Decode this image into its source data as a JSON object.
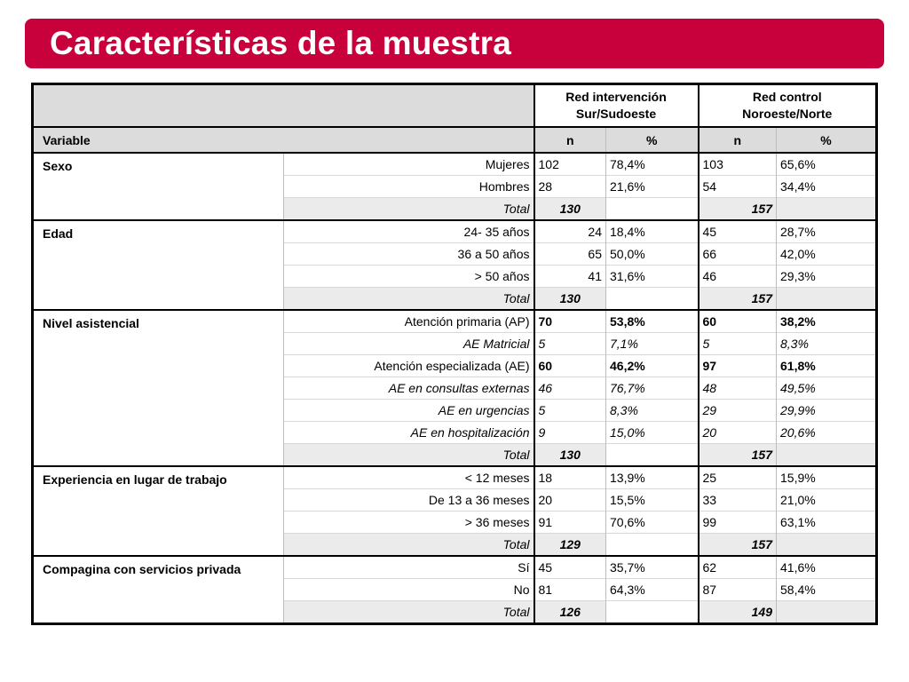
{
  "slide": {
    "title": "Características de la muestra"
  },
  "table": {
    "group_headers": {
      "intervencion": [
        "Red intervención",
        "Sur/Sudoeste"
      ],
      "control": [
        "Red control",
        "Noroeste/Norte"
      ]
    },
    "sub_headers": {
      "variable": "Variable",
      "n": "n",
      "pct": "%"
    },
    "sections": [
      {
        "name": "Sexo",
        "rows": [
          {
            "label": "Mujeres",
            "n1": "102",
            "p1": "78,4%",
            "n2": "103",
            "p2": "65,6%"
          },
          {
            "label": "Hombres",
            "n1": "28",
            "p1": "21,6%",
            "n2": "54",
            "p2": "34,4%"
          }
        ],
        "total": {
          "label": "Total",
          "n1": "130",
          "n2": "157"
        }
      },
      {
        "name": "Edad",
        "rows": [
          {
            "label": "24- 35 años",
            "n1": "24",
            "p1": "18,4%",
            "n2": "45",
            "p2": "28,7%"
          },
          {
            "label": "36 a 50 años",
            "n1": "65",
            "p1": "50,0%",
            "n2": "66",
            "p2": "42,0%"
          },
          {
            "label": "> 50 años",
            "n1": "41",
            "p1": "31,6%",
            "n2": "46",
            "p2": "29,3%"
          }
        ],
        "total": {
          "label": "Total",
          "n1": "130",
          "n2": "157"
        }
      },
      {
        "name": "Nivel asistencial",
        "rows": [
          {
            "label": "Atención primaria (AP)",
            "n1": "70",
            "p1": "53,8%",
            "n2": "60",
            "p2": "38,2%"
          },
          {
            "label": "AE Matricial",
            "n1": "5",
            "p1": "7,1%",
            "n2": "5",
            "p2": "8,3%"
          },
          {
            "label": "Atención especializada (AE)",
            "n1": "60",
            "p1": "46,2%",
            "n2": "97",
            "p2": "61,8%"
          },
          {
            "label": "AE en consultas externas",
            "n1": "46",
            "p1": "76,7%",
            "n2": "48",
            "p2": "49,5%"
          },
          {
            "label": "AE en urgencias",
            "n1": "5",
            "p1": "8,3%",
            "n2": "29",
            "p2": "29,9%"
          },
          {
            "label": "AE en hospitalización",
            "n1": "9",
            "p1": "15,0%",
            "n2": "20",
            "p2": "20,6%"
          }
        ],
        "total": {
          "label": "Total",
          "n1": "130",
          "n2": "157"
        }
      },
      {
        "name": "Experiencia en lugar de trabajo",
        "rows": [
          {
            "label": "< 12 meses",
            "n1": "18",
            "p1": "13,9%",
            "n2": "25",
            "p2": "15,9%"
          },
          {
            "label": "De 13 a 36 meses",
            "n1": "20",
            "p1": "15,5%",
            "n2": "33",
            "p2": "21,0%"
          },
          {
            "label": "> 36 meses",
            "n1": "91",
            "p1": "70,6%",
            "n2": "99",
            "p2": "63,1%"
          }
        ],
        "total": {
          "label": "Total",
          "n1": "129",
          "n2": "157"
        }
      },
      {
        "name": "Compagina con servicios privada",
        "rows": [
          {
            "label": "Sí",
            "n1": "45",
            "p1": "35,7%",
            "n2": "62",
            "p2": "41,6%"
          },
          {
            "label": "No",
            "n1": "81",
            "p1": "64,3%",
            "n2": "87",
            "p2": "58,4%"
          }
        ],
        "total": {
          "label": "Total",
          "n1": "126",
          "n2": "149"
        }
      }
    ]
  }
}
